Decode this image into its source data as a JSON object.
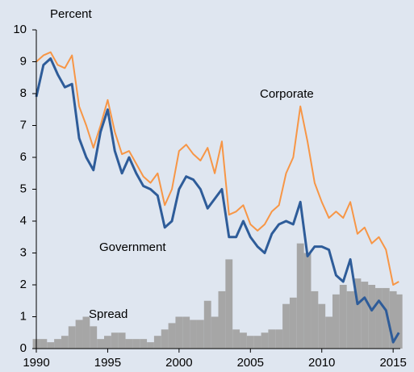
{
  "chart_data": {
    "type": "line",
    "y_axis_label": "Percent",
    "x": [
      1990,
      1990.5,
      1991,
      1991.5,
      1992,
      1992.5,
      1993,
      1993.5,
      1994,
      1994.5,
      1995,
      1995.5,
      1996,
      1996.5,
      1997,
      1997.5,
      1998,
      1998.5,
      1999,
      1999.5,
      2000,
      2000.5,
      2001,
      2001.5,
      2002,
      2002.5,
      2003,
      2003.5,
      2004,
      2004.5,
      2005,
      2005.5,
      2006,
      2006.5,
      2007,
      2007.5,
      2008,
      2008.5,
      2009,
      2009.5,
      2010,
      2010.5,
      2011,
      2011.5,
      2012,
      2012.5,
      2013,
      2013.5,
      2014,
      2014.5,
      2015,
      2015.4
    ],
    "series": [
      {
        "name": "Spread",
        "kind": "area",
        "color": "#a6a6a6",
        "values": [
          0.3,
          0.3,
          0.2,
          0.3,
          0.4,
          0.7,
          0.9,
          1.0,
          0.7,
          0.3,
          0.4,
          0.5,
          0.5,
          0.3,
          0.3,
          0.3,
          0.2,
          0.4,
          0.6,
          0.8,
          1.0,
          1.0,
          0.9,
          0.9,
          1.5,
          1.0,
          1.8,
          2.8,
          0.6,
          0.5,
          0.4,
          0.4,
          0.5,
          0.6,
          0.6,
          1.4,
          1.6,
          3.3,
          3.0,
          1.8,
          1.4,
          1.0,
          1.7,
          2.0,
          1.8,
          2.2,
          2.1,
          2.0,
          1.9,
          1.9,
          1.8,
          1.7
        ]
      },
      {
        "name": "Corporate",
        "kind": "line",
        "color": "#f79646",
        "values": [
          9.0,
          9.2,
          9.3,
          8.9,
          8.8,
          9.2,
          7.6,
          7.0,
          6.3,
          7.0,
          7.8,
          6.8,
          6.1,
          6.2,
          5.8,
          5.4,
          5.2,
          5.5,
          4.5,
          5.0,
          6.2,
          6.4,
          6.1,
          5.9,
          6.3,
          5.5,
          6.5,
          4.2,
          4.3,
          4.5,
          3.9,
          3.7,
          3.9,
          4.3,
          4.5,
          5.5,
          6.0,
          7.6,
          6.5,
          5.2,
          4.6,
          4.1,
          4.3,
          4.1,
          4.6,
          3.6,
          3.8,
          3.3,
          3.5,
          3.1,
          2.0,
          2.1
        ]
      },
      {
        "name": "Government",
        "kind": "line",
        "color": "#2e5c99",
        "values": [
          7.9,
          8.9,
          9.1,
          8.6,
          8.2,
          8.3,
          6.6,
          6.0,
          5.6,
          6.8,
          7.5,
          6.2,
          5.5,
          6.0,
          5.5,
          5.1,
          5.0,
          4.8,
          3.8,
          4.0,
          5.0,
          5.4,
          5.3,
          5.0,
          4.4,
          4.7,
          5.0,
          3.5,
          3.5,
          4.0,
          3.5,
          3.2,
          3.0,
          3.6,
          3.9,
          4.0,
          3.9,
          4.6,
          2.9,
          3.2,
          3.2,
          3.1,
          2.3,
          2.1,
          2.8,
          1.4,
          1.6,
          1.2,
          1.5,
          1.2,
          0.2,
          0.5
        ]
      }
    ],
    "xlim": [
      1990,
      2015.5
    ],
    "xticks": [
      1990,
      1995,
      2000,
      2005,
      2010,
      2015
    ],
    "ylim": [
      0,
      10
    ],
    "yticks": [
      0,
      1,
      2,
      3,
      4,
      5,
      6,
      7,
      8,
      9,
      10
    ]
  }
}
